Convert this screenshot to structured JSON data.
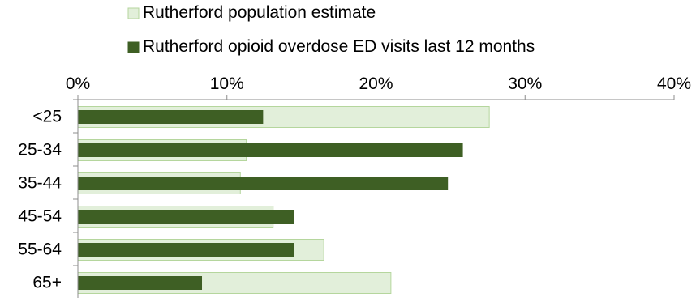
{
  "chart_data": {
    "type": "bar",
    "orientation": "horizontal",
    "categories": [
      "<25",
      "25-34",
      "35-44",
      "45-54",
      "55-64",
      "65+"
    ],
    "series": [
      {
        "name": "Rutherford population estimate",
        "values": [
          27.6,
          11.3,
          10.9,
          13.1,
          16.5,
          21.0
        ],
        "color": "#e2efda",
        "stroke": "#b5d69d"
      },
      {
        "name": "Rutherford opioid overdose ED visits last 12 months",
        "values": [
          12.4,
          25.8,
          24.8,
          14.5,
          14.5,
          8.3
        ],
        "color": "#3e5f24",
        "stroke": "#3e5f24"
      }
    ],
    "xlim": [
      0,
      40
    ],
    "xticks": [
      0,
      10,
      20,
      30,
      40
    ],
    "xtick_labels": [
      "0%",
      "10%",
      "20%",
      "30%",
      "40%"
    ],
    "legend_position": "top",
    "grid": false
  }
}
